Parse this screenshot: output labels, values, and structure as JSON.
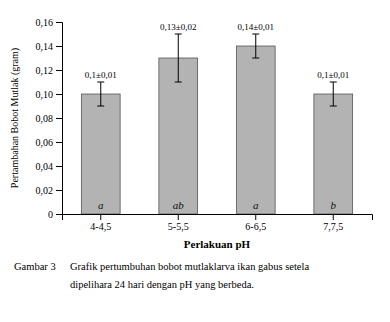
{
  "chart_data": {
    "type": "bar",
    "categories": [
      "4-4,5",
      "5-5,5",
      "6-6,5",
      "7,7,5"
    ],
    "values": [
      0.1,
      0.13,
      0.14,
      0.1
    ],
    "errors": [
      0.01,
      0.02,
      0.01,
      0.01
    ],
    "value_labels": [
      "0,1±0,01",
      "0,13±0,02",
      "0,14±0,01",
      "0,1±0,01"
    ],
    "data_labels": true,
    "bar_labels": [
      "a",
      "ab",
      "a",
      "b"
    ],
    "color": "#b3b3b3",
    "xlabel": "Perlakuan pH",
    "ylabel": "Pertambahan Bobot Mutlak (gram)",
    "ylim": [
      0,
      0.16
    ],
    "yticks": [
      0,
      {
        "value": 0.02,
        "label": "0,02"
      },
      {
        "value": 0.04,
        "label": "0,04"
      },
      {
        "value": 0.06,
        "label": "0,06"
      },
      {
        "value": 0.08,
        "label": "0,08"
      },
      {
        "value": 0.1,
        "label": "0,10"
      },
      {
        "value": 0.12,
        "label": "0,12"
      },
      {
        "value": 0.14,
        "label": "0,14"
      },
      {
        "value": 0.16,
        "label": "0,16"
      }
    ],
    "grid": false,
    "caption_label": "Gambar 3",
    "caption_lines": [
      "Grafik pertumbuhan bobot mutlaklarva ikan gabus setela",
      "dipelihara 24 hari dengan pH yang berbeda."
    ]
  }
}
